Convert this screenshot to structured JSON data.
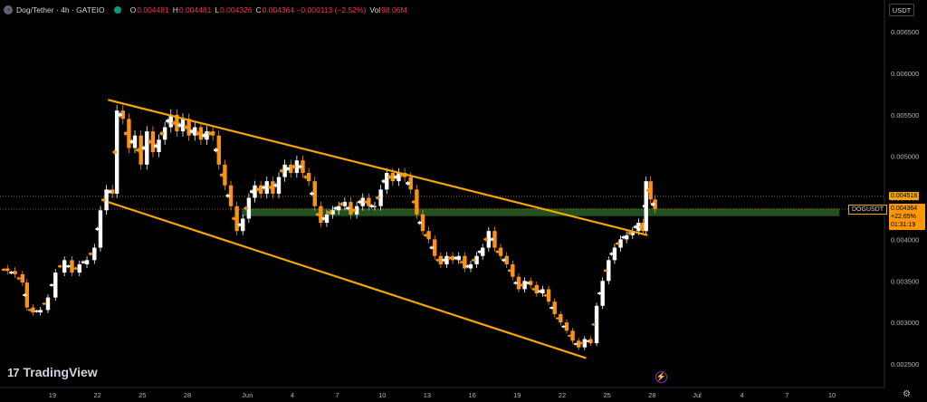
{
  "header": {
    "title": "Dog/Tether · 4h · GATEIO",
    "open_label": "O",
    "open": "0.004481",
    "high_label": "H",
    "high": "0.004481",
    "low_label": "L",
    "low": "0.004326",
    "close_label": "C",
    "close": "0.004364 −0.000113 (−2.52%)",
    "vol_label": "Vol",
    "vol": "98.06M"
  },
  "currency_button": "USDT",
  "logo_text": "TradingView",
  "price_tags": {
    "prev": "0.004518",
    "symbol": "DOGUSDT",
    "current": "0.004364",
    "change": "+22.65%",
    "countdown": "01:31:19"
  },
  "colors": {
    "up": "#089981",
    "down": "#f23645",
    "candle_up": "#ffffff",
    "candle_down": "#f7931a",
    "channel": "#f7a600",
    "zone": "#2e6b2a",
    "background": "#000000"
  },
  "icons": [
    "tradingview-logo-icon",
    "flash-icon",
    "gear-icon",
    "status-dot-icon"
  ],
  "chart_data": {
    "type": "candlestick",
    "y_axis_ticks": [
      "0.006500",
      "0.006000",
      "0.005500",
      "0.005000",
      "0.004500",
      "0.004000",
      "0.003500",
      "0.003000",
      "0.002500"
    ],
    "y_axis_values": [
      0.0065,
      0.006,
      0.0055,
      0.005,
      0.0045,
      0.004,
      0.0035,
      0.003,
      0.0025
    ],
    "ylim": [
      0.0023,
      0.0068
    ],
    "x_axis_ticks": [
      "19",
      "22",
      "25",
      "28",
      "Jun",
      "4",
      "7",
      "10",
      "13",
      "16",
      "19",
      "22",
      "25",
      "28",
      "Jul",
      "4",
      "7",
      "10"
    ],
    "x_axis_days": [
      -13,
      -10,
      -7,
      -4,
      0,
      3,
      6,
      9,
      12,
      15,
      18,
      21,
      24,
      27,
      30,
      33,
      36,
      39
    ],
    "xlim": [
      -16.5,
      42.5
    ],
    "x_unit": "days from 1 Jun",
    "series_close": [
      [
        -16.5,
        0.00365
      ],
      [
        -16,
        0.00362
      ],
      [
        -15.5,
        0.00358
      ],
      [
        -15,
        0.00348
      ],
      [
        -14.7,
        0.00318
      ],
      [
        -14.3,
        0.00312
      ],
      [
        -13.8,
        0.00315
      ],
      [
        -13.3,
        0.0033
      ],
      [
        -12.8,
        0.0036
      ],
      [
        -12.2,
        0.00375
      ],
      [
        -11.7,
        0.0036
      ],
      [
        -11.2,
        0.0037
      ],
      [
        -10.7,
        0.00375
      ],
      [
        -10.2,
        0.0039
      ],
      [
        -9.8,
        0.00435
      ],
      [
        -9.4,
        0.0046
      ],
      [
        -9.0,
        0.00455
      ],
      [
        -8.7,
        0.00555
      ],
      [
        -8.3,
        0.00545
      ],
      [
        -7.9,
        0.0051
      ],
      [
        -7.5,
        0.00525
      ],
      [
        -7.1,
        0.0049
      ],
      [
        -6.7,
        0.0053
      ],
      [
        -6.3,
        0.00505
      ],
      [
        -5.9,
        0.0052
      ],
      [
        -5.5,
        0.00535
      ],
      [
        -5.1,
        0.0055
      ],
      [
        -4.7,
        0.0053
      ],
      [
        -4.3,
        0.00545
      ],
      [
        -3.9,
        0.00525
      ],
      [
        -3.5,
        0.00535
      ],
      [
        -3.1,
        0.0052
      ],
      [
        -2.7,
        0.0053
      ],
      [
        -2.3,
        0.00525
      ],
      [
        -1.9,
        0.0049
      ],
      [
        -1.5,
        0.00465
      ],
      [
        -1.1,
        0.0044
      ],
      [
        -0.7,
        0.0041
      ],
      [
        -0.3,
        0.00425
      ],
      [
        0.1,
        0.0045
      ],
      [
        0.5,
        0.00465
      ],
      [
        0.9,
        0.00455
      ],
      [
        1.3,
        0.0047
      ],
      [
        1.7,
        0.00455
      ],
      [
        2.1,
        0.00475
      ],
      [
        2.5,
        0.0049
      ],
      [
        2.9,
        0.0048
      ],
      [
        3.3,
        0.00495
      ],
      [
        3.7,
        0.0048
      ],
      [
        4.1,
        0.0047
      ],
      [
        4.5,
        0.0044
      ],
      [
        4.9,
        0.0042
      ],
      [
        5.3,
        0.0043
      ],
      [
        5.7,
        0.00435
      ],
      [
        6.1,
        0.0044
      ],
      [
        6.5,
        0.00445
      ],
      [
        6.9,
        0.0043
      ],
      [
        7.3,
        0.0044
      ],
      [
        7.7,
        0.0045
      ],
      [
        8.1,
        0.0044
      ],
      [
        8.5,
        0.0044
      ],
      [
        8.9,
        0.0046
      ],
      [
        9.3,
        0.0048
      ],
      [
        9.7,
        0.0047
      ],
      [
        10.1,
        0.0048
      ],
      [
        10.5,
        0.00475
      ],
      [
        10.9,
        0.0046
      ],
      [
        11.3,
        0.0043
      ],
      [
        11.7,
        0.0041
      ],
      [
        12.1,
        0.004
      ],
      [
        12.5,
        0.0038
      ],
      [
        12.9,
        0.0037
      ],
      [
        13.3,
        0.0038
      ],
      [
        13.7,
        0.00375
      ],
      [
        14.1,
        0.0038
      ],
      [
        14.5,
        0.00365
      ],
      [
        14.9,
        0.0037
      ],
      [
        15.3,
        0.0038
      ],
      [
        15.7,
        0.0039
      ],
      [
        16.1,
        0.0041
      ],
      [
        16.5,
        0.0039
      ],
      [
        16.9,
        0.0038
      ],
      [
        17.3,
        0.0037
      ],
      [
        17.7,
        0.00355
      ],
      [
        18.1,
        0.0034
      ],
      [
        18.5,
        0.0035
      ],
      [
        18.9,
        0.00345
      ],
      [
        19.3,
        0.00335
      ],
      [
        19.7,
        0.0034
      ],
      [
        20.1,
        0.00325
      ],
      [
        20.5,
        0.0031
      ],
      [
        20.9,
        0.003
      ],
      [
        21.3,
        0.0029
      ],
      [
        21.7,
        0.00278
      ],
      [
        22.1,
        0.0027
      ],
      [
        22.5,
        0.0028
      ],
      [
        22.9,
        0.00275
      ],
      [
        23.3,
        0.0032
      ],
      [
        23.7,
        0.0035
      ],
      [
        24.1,
        0.00375
      ],
      [
        24.5,
        0.0039
      ],
      [
        24.9,
        0.004
      ],
      [
        25.3,
        0.00405
      ],
      [
        25.7,
        0.0041
      ],
      [
        26.1,
        0.0042
      ],
      [
        26.4,
        0.0041
      ],
      [
        26.6,
        0.0047
      ],
      [
        26.9,
        0.004481
      ],
      [
        27.2,
        0.004364
      ]
    ],
    "trendlines": [
      {
        "name": "upper",
        "from": [
          -9.3,
          0.00568
        ],
        "to": [
          26.7,
          0.00405
        ]
      },
      {
        "name": "lower",
        "from": [
          -9.3,
          0.00445
        ],
        "to": [
          22.6,
          0.00257
        ]
      }
    ],
    "zone": {
      "x_from": 0.0,
      "x_to": 39.5,
      "y_low": 0.00428,
      "y_high": 0.00437
    },
    "horizontal_lines": [
      {
        "y": 0.004518,
        "style": "dotted"
      },
      {
        "y": 0.004364,
        "style": "dotted"
      }
    ],
    "grid": false
  }
}
